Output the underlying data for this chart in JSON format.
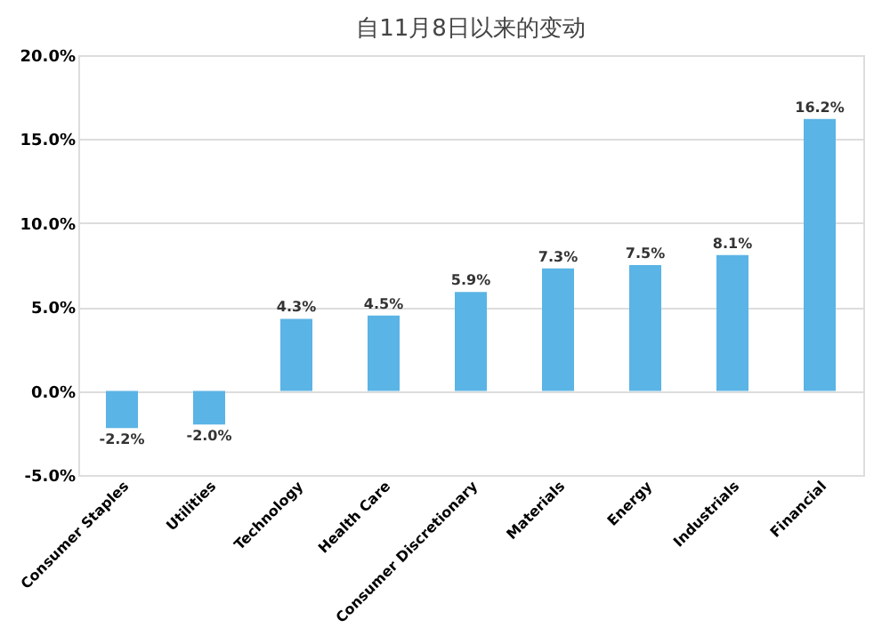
{
  "chart_data": {
    "type": "bar",
    "title": "自11月8日以来的变动",
    "categories": [
      "Consumer Staples",
      "Utilities",
      "Technology",
      "Health Care",
      "Consumer Discretionary",
      "Materials",
      "Energy",
      "Industrials",
      "Financial"
    ],
    "values": [
      -2.2,
      -2.0,
      4.3,
      4.5,
      5.9,
      7.3,
      7.5,
      8.1,
      16.2
    ],
    "value_labels": [
      "-2.2%",
      "-2.0%",
      "4.3%",
      "4.5%",
      "5.9%",
      "7.3%",
      "7.5%",
      "8.1%",
      "16.2%"
    ],
    "color": "#5ab4e5",
    "ylim": [
      -5,
      20
    ],
    "yticks": [
      {
        "value": -5,
        "label": "-5.0%"
      },
      {
        "value": 0,
        "label": "0.0%"
      },
      {
        "value": 5,
        "label": "5.0%"
      },
      {
        "value": 10,
        "label": "10.0%"
      },
      {
        "value": 15,
        "label": "15.0%"
      },
      {
        "value": 20,
        "label": "20.0%"
      }
    ],
    "grid": "y"
  }
}
